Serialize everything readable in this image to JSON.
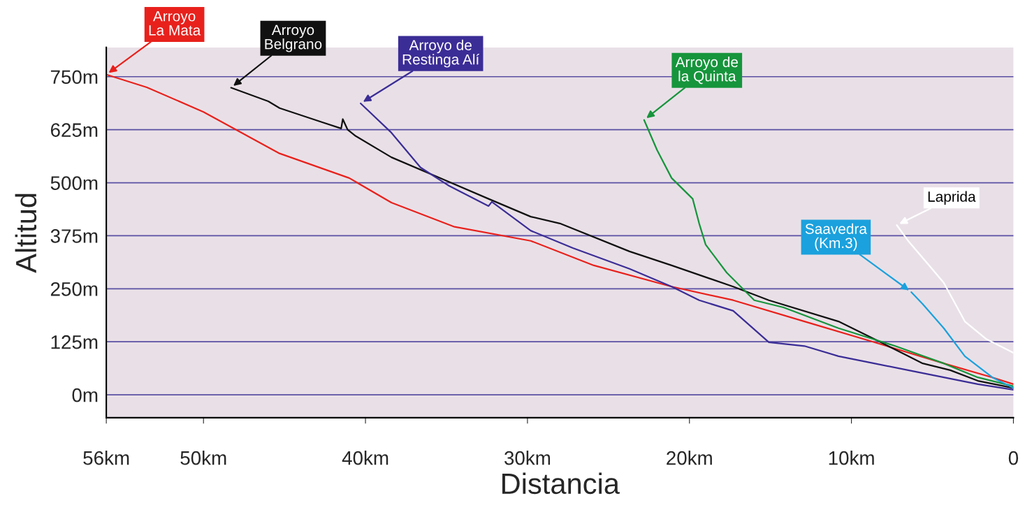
{
  "chart_data": {
    "type": "line",
    "xlabel": "Distancia",
    "ylabel": "Altitud",
    "xlim": [
      56,
      0
    ],
    "ylim": [
      -54,
      819
    ],
    "xticks": [
      {
        "value": 56,
        "label": "56km"
      },
      {
        "value": 50,
        "label": "50km"
      },
      {
        "value": 40,
        "label": "40km"
      },
      {
        "value": 30,
        "label": "30km"
      },
      {
        "value": 20,
        "label": "20km"
      },
      {
        "value": 10,
        "label": "10km"
      },
      0
    ],
    "yticks": [
      {
        "value": 0,
        "label": "0m"
      },
      {
        "value": 125,
        "label": "125m"
      },
      {
        "value": 250,
        "label": "250m"
      },
      {
        "value": 375,
        "label": "375m"
      },
      {
        "value": 500,
        "label": "500m"
      },
      {
        "value": 625,
        "label": "625m"
      },
      {
        "value": 750,
        "label": "750m"
      }
    ],
    "grid": "y",
    "legend": false,
    "marker": "none",
    "line_style": "solid",
    "series": [
      {
        "name": "Arroyo\nLa Mata",
        "color": "#e8211c",
        "x": [
          56,
          53.5,
          50,
          45.3,
          41,
          38.4,
          34.5,
          29.8,
          25.9,
          21.1,
          17.3,
          12.9,
          8.6,
          4.3,
          1.3,
          0
        ],
        "values": [
          755,
          725,
          667,
          569,
          511,
          453,
          396,
          363,
          305,
          255,
          223,
          173,
          124,
          74,
          41,
          25
        ]
      },
      {
        "name": "Arroyo\nBelgrano",
        "color": "#111111",
        "x": [
          48.3,
          46,
          45.3,
          42.7,
          41.5,
          41.4,
          41.1,
          40.6,
          38.4,
          34.9,
          32.4,
          29.8,
          28,
          23.7,
          21.1,
          17.3,
          15.1,
          10.8,
          8.2,
          5.6,
          3.9,
          2.2,
          0
        ],
        "values": [
          724,
          692,
          676,
          643,
          628,
          650,
          625,
          610,
          560,
          503,
          462,
          420,
          404,
          338,
          305,
          255,
          223,
          173,
          124,
          74,
          58,
          33,
          16
        ]
      },
      {
        "name": "Arroyo de\nRestinga Alí",
        "color": "#3b2d96",
        "x": [
          40.3,
          38.4,
          36.6,
          34.9,
          32.4,
          32.2,
          29.8,
          27.2,
          23.7,
          21.1,
          19.4,
          17.3,
          15.1,
          12.9,
          10.8,
          8.6,
          6.5,
          2.2,
          0
        ],
        "values": [
          687,
          618,
          536,
          494,
          445,
          455,
          387,
          346,
          297,
          255,
          223,
          198,
          124,
          115,
          91,
          74,
          58,
          25,
          12
        ]
      },
      {
        "name": "Arroyo de\nla Quinta",
        "color": "#16953c",
        "x": [
          22.8,
          22,
          21.1,
          19.8,
          19.4,
          19,
          17.7,
          16,
          14.2,
          10.8,
          7.3,
          4.3,
          2.2,
          0
        ],
        "values": [
          648,
          577,
          511,
          462,
          404,
          354,
          288,
          223,
          206,
          157,
          115,
          74,
          41,
          20
        ]
      },
      {
        "name": "Saavedra\n(Km.3)",
        "color": "#1ba1dd",
        "x": [
          6.3,
          5.6,
          4.3,
          3,
          1.3,
          0
        ],
        "values": [
          242,
          214,
          157,
          91,
          41,
          16
        ]
      },
      {
        "name": "Laprida",
        "color": "#ffffff",
        "x": [
          7.2,
          6.5,
          5.2,
          4.3,
          3,
          1.7,
          0
        ],
        "values": [
          400,
          363,
          305,
          264,
          173,
          132,
          99
        ]
      }
    ]
  }
}
